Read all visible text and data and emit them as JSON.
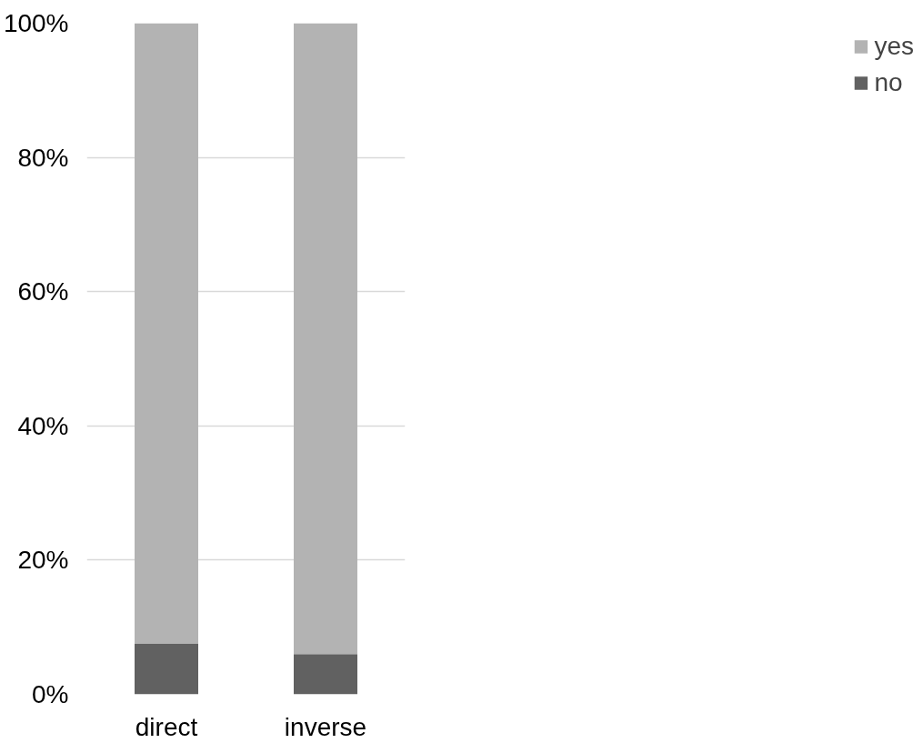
{
  "chart_data": {
    "type": "bar",
    "stacked": true,
    "categories": [
      "direct",
      "inverse"
    ],
    "series": [
      {
        "name": "no",
        "color": "#616161",
        "values": [
          7.6,
          6
        ]
      },
      {
        "name": "yes",
        "color": "#b3b3b3",
        "values": [
          92.4,
          94
        ]
      }
    ],
    "ylim": [
      0,
      100
    ],
    "yticks": [
      {
        "value": 0,
        "label": "0%"
      },
      {
        "value": 20,
        "label": "20%"
      },
      {
        "value": 40,
        "label": "40%"
      },
      {
        "value": 60,
        "label": "60%"
      },
      {
        "value": 80,
        "label": "80%"
      },
      {
        "value": 100,
        "label": "100%"
      }
    ],
    "grid": "y",
    "legend": "right"
  }
}
